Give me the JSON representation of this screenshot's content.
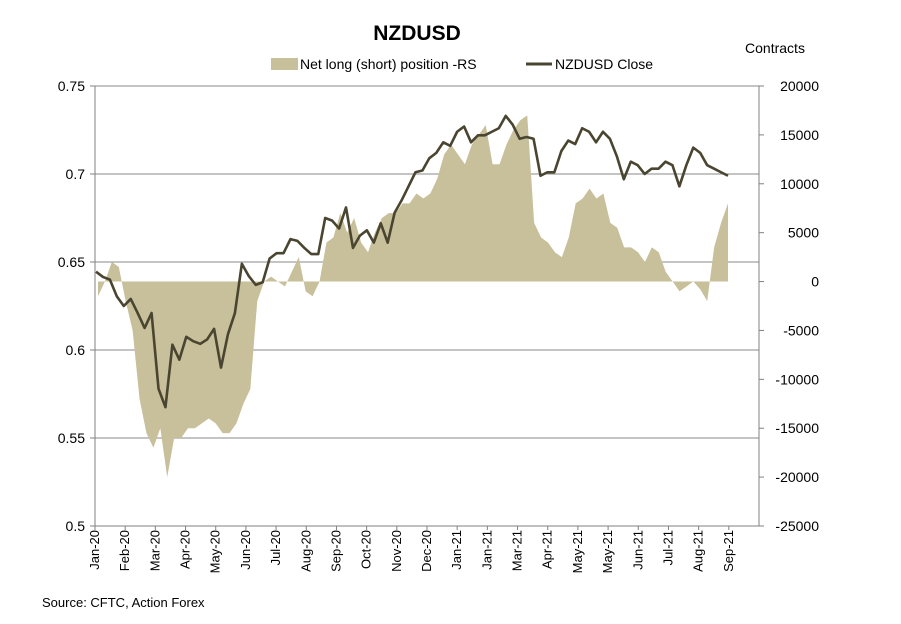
{
  "chart_data": {
    "type": "area+line",
    "title": "NZDUSD",
    "y2_title": "Contracts",
    "source": "Source: CFTC, Action Forex",
    "legend": [
      {
        "label": "Net long (short) position -RS",
        "color": "#c8bf9b",
        "kind": "area"
      },
      {
        "label": "NZDUSD Close",
        "color": "#4a4530",
        "kind": "line"
      }
    ],
    "y_left": {
      "min": 0.5,
      "max": 0.75,
      "ticks": [
        "0.75",
        "0.7",
        "0.65",
        "0.6",
        "0.55",
        "0.5"
      ],
      "tick_values": [
        0.75,
        0.7,
        0.65,
        0.6,
        0.55,
        0.5
      ]
    },
    "y_right": {
      "min": -25000,
      "max": 20000,
      "ticks": [
        "20000",
        "15000",
        "10000",
        "5000",
        "0",
        "-5000",
        "-10000",
        "-15000",
        "-20000",
        "-25000"
      ],
      "tick_values": [
        20000,
        15000,
        10000,
        5000,
        0,
        -5000,
        -10000,
        -15000,
        -20000,
        -25000
      ]
    },
    "x_labels": [
      "Jan-20",
      "Feb-20",
      "Mar-20",
      "Apr-20",
      "May-20",
      "Jun-20",
      "Jul-20",
      "Aug-20",
      "Sep-20",
      "Oct-20",
      "Nov-20",
      "Dec-20",
      "Jan-21",
      "Jan-21",
      "Mar-21",
      "Apr-21",
      "May-21",
      "May-21",
      "Jun-21",
      "Jul-21",
      "Aug-21",
      "Sep-21"
    ],
    "grid": {
      "horizontal": true,
      "vertical": false
    },
    "series": [
      {
        "name": "Net long (short) position -RS",
        "axis": "right",
        "values": [
          -1500,
          0,
          2000,
          1500,
          -2000,
          -5000,
          -12000,
          -15500,
          -17000,
          -15000,
          -20000,
          -16000,
          -16000,
          -15000,
          -15000,
          -14500,
          -14000,
          -14500,
          -15500,
          -15500,
          -14500,
          -12500,
          -11000,
          -2000,
          0,
          500,
          0,
          -500,
          1000,
          2500,
          -1000,
          -1500,
          0,
          4000,
          4500,
          7000,
          5000,
          6500,
          4000,
          3000,
          5000,
          6500,
          7000,
          7000,
          8000,
          8000,
          9000,
          8500,
          9000,
          10500,
          13000,
          14000,
          13000,
          12000,
          14000,
          15000,
          16000,
          12000,
          12000,
          14000,
          15500,
          16500,
          17000,
          6000,
          4500,
          4000,
          3000,
          2500,
          4500,
          8000,
          8500,
          9500,
          8500,
          9000,
          6000,
          5500,
          3500,
          3500,
          3000,
          2000,
          3500,
          3000,
          1000,
          0,
          -1000,
          -500,
          0,
          -800,
          -2000,
          3500,
          6000,
          8000
        ]
      },
      {
        "name": "NZDUSD Close",
        "axis": "left",
        "values": [
          0.6445,
          0.6415,
          0.64,
          0.6305,
          0.625,
          0.629,
          0.621,
          0.6125,
          0.621,
          0.578,
          0.5675,
          0.603,
          0.5945,
          0.6075,
          0.605,
          0.6035,
          0.606,
          0.612,
          0.59,
          0.609,
          0.621,
          0.649,
          0.642,
          0.637,
          0.6385,
          0.652,
          0.655,
          0.655,
          0.663,
          0.662,
          0.658,
          0.6545,
          0.6545,
          0.675,
          0.6735,
          0.669,
          0.681,
          0.658,
          0.665,
          0.668,
          0.661,
          0.672,
          0.661,
          0.678,
          0.685,
          0.693,
          0.701,
          0.702,
          0.709,
          0.712,
          0.718,
          0.716,
          0.724,
          0.727,
          0.718,
          0.722,
          0.722,
          0.724,
          0.726,
          0.733,
          0.728,
          0.72,
          0.721,
          0.72,
          0.699,
          0.701,
          0.701,
          0.713,
          0.719,
          0.717,
          0.726,
          0.724,
          0.718,
          0.724,
          0.72,
          0.71,
          0.697,
          0.707,
          0.705,
          0.7,
          0.703,
          0.703,
          0.707,
          0.705,
          0.693,
          0.705,
          0.715,
          0.712,
          0.705,
          0.703,
          0.701,
          0.699
        ]
      }
    ]
  }
}
